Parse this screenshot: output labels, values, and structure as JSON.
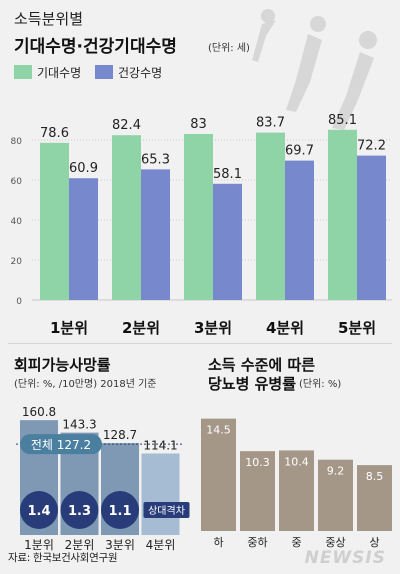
{
  "source": "자료: 한국보건사회연구원",
  "watermark": "NEWSIS",
  "colors": {
    "green": "#8fd4a6",
    "blue": "#7789cc",
    "steel": "#a5bcd2",
    "steel_dark": "#7f99b4",
    "navy": "#283c7a",
    "teal_label": "#4b7fa0",
    "brown": "#a59788",
    "grid": "#c9c9c9",
    "silhouette": "#d7d7d7"
  },
  "chart_data": [
    {
      "type": "bar",
      "title": "소득분위별",
      "subtitle": "기대수명·건강기대수명",
      "unit": "(단위: 세)",
      "categories": [
        "1분위",
        "2분위",
        "3분위",
        "4분위",
        "5분위"
      ],
      "series": [
        {
          "name": "기대수명",
          "values": [
            78.6,
            82.4,
            83,
            83.7,
            85.1
          ],
          "labels": [
            "78.6",
            "82.4",
            "83",
            "83.7",
            "85.1"
          ]
        },
        {
          "name": "건강수명",
          "values": [
            60.9,
            65.3,
            58.1,
            69.7,
            72.2
          ],
          "labels": [
            "60.9",
            "65.3",
            "58.1",
            "69.7",
            "72.2"
          ]
        }
      ],
      "yticks": [
        "0",
        "20",
        "40",
        "60",
        "80"
      ],
      "ylim": [
        0,
        95
      ],
      "grid": true,
      "legend": "top-left"
    },
    {
      "type": "bar",
      "title": "회피가능사망률",
      "unit": "(단위: %, /10만명) 2018년 기준",
      "categories": [
        "1분위",
        "2분위",
        "3분위",
        "4분위"
      ],
      "values": [
        160.8,
        143.3,
        128.7,
        114.1
      ],
      "value_labels": [
        "160.8",
        "143.3",
        "128.7",
        "114.1"
      ],
      "reference": {
        "label": "전체",
        "value": 127.2,
        "value_label": "127.2"
      },
      "ratios": [
        "1.4",
        "1.3",
        "1.1"
      ],
      "ratio_label": "상대격차",
      "ylim": [
        0,
        175
      ]
    },
    {
      "type": "bar",
      "title": "소득 수준에 따른",
      "subtitle": "당뇨병 유병률",
      "unit": "(단위: %)",
      "categories": [
        "하",
        "중하",
        "중",
        "중상",
        "상"
      ],
      "values": [
        14.5,
        10.3,
        10.4,
        9.2,
        8.5
      ],
      "value_labels": [
        "14.5",
        "10.3",
        "10.4",
        "9.2",
        "8.5"
      ],
      "ylim": [
        0,
        16
      ]
    }
  ]
}
